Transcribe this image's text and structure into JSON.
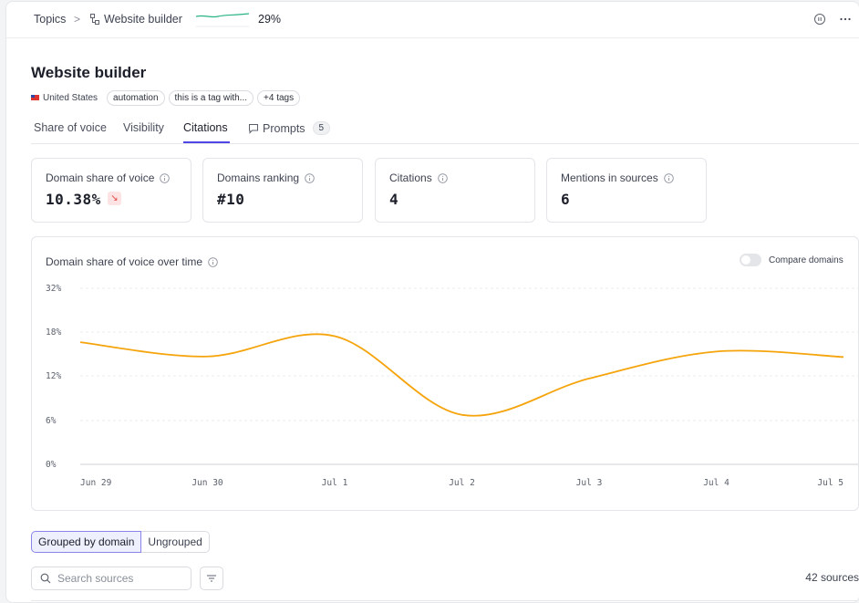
{
  "breadcrumb": {
    "root": "Topics",
    "separator": ">",
    "current": "Website builder",
    "current_icon": "hierarchy-icon",
    "trend_value": "29%"
  },
  "header": {
    "title": "Website builder",
    "country": "United States",
    "country_icon": "us-flag-icon",
    "tags": [
      "automation",
      "this is a tag with...",
      "+4 tags"
    ]
  },
  "tabs": [
    {
      "label": "Share of voice",
      "active": false
    },
    {
      "label": "Visibility",
      "active": false
    },
    {
      "label": "Citations",
      "active": true
    },
    {
      "label": "Prompts",
      "active": false,
      "count": "5",
      "icon": "chat-bubble-icon"
    }
  ],
  "stats": [
    {
      "label": "Domain share of voice",
      "value": "10.38%",
      "trend": "down"
    },
    {
      "label": "Domains ranking",
      "value": "#10"
    },
    {
      "label": "Citations",
      "value": "4"
    },
    {
      "label": "Mentions in sources",
      "value": "6"
    }
  ],
  "chart_section": {
    "title": "Domain share of voice over time",
    "toggle_label": "Compare domains",
    "toggle_on": false
  },
  "chart_data": {
    "type": "line",
    "x": [
      "Jun 29",
      "Jun 30",
      "Jul 1",
      "Jul 2",
      "Jul 3",
      "Jul 4",
      "Jul 5"
    ],
    "y_ticks": [
      "0%",
      "6%",
      "12%",
      "18%",
      "32%"
    ],
    "series": [
      {
        "values": [
          22.2,
          19.6,
          23.3,
          9.0,
          15.6,
          20.5,
          19.5
        ],
        "color": "#f5a40c"
      }
    ],
    "grid": "horizontal-dashed"
  },
  "grouping": {
    "options": [
      "Grouped by domain",
      "Ungrouped"
    ],
    "selected": "Grouped by domain"
  },
  "search": {
    "placeholder": "Search sources",
    "value": ""
  },
  "sources_count": "42 sources",
  "colors": {
    "accent": "#4f46e5",
    "line": "#f5a40c",
    "trend_down": "#e04444",
    "sparkline": "#27b384"
  }
}
